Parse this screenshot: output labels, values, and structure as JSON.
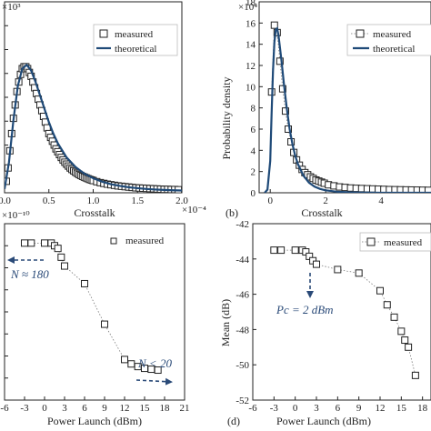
{
  "panels": {
    "a": {
      "exp_label": "×10³",
      "xlabel": "Crosstalk",
      "x_exp": "×10⁻⁴",
      "legend": [
        "measured",
        "theoretical"
      ]
    },
    "b": {
      "panel_letter": "(b)",
      "exp_label": "×10⁴",
      "xlabel": "Crosstalk",
      "ylabel": "Probability density",
      "legend": [
        "measured",
        "theoretical"
      ]
    },
    "c": {
      "exp_label": "×10⁻¹⁰",
      "xlabel": "Power Launch (dBm)",
      "legend": [
        "measured"
      ],
      "ann1": "N ≈ 180",
      "ann2": "N < 20"
    },
    "d": {
      "panel_letter": "(d)",
      "xlabel": "Power Launch (dBm)",
      "ylabel": "Mean (dB)",
      "legend": [
        "measured"
      ],
      "ann1": "Pc = 2 dBm"
    }
  },
  "chart_data": [
    {
      "panel": "a",
      "type": "scatter",
      "xlabel": "Crosstalk",
      "x_ticks": [
        "0.0",
        "0.5",
        "1.0",
        "1.5",
        "2.0"
      ],
      "xlim": [
        0,
        2.0
      ],
      "ylim": [
        0,
        10
      ],
      "y_ticks": [],
      "series": [
        {
          "name": "measured",
          "x": [
            0.02,
            0.04,
            0.06,
            0.08,
            0.1,
            0.12,
            0.14,
            0.16,
            0.18,
            0.2,
            0.22,
            0.24,
            0.26,
            0.28,
            0.3,
            0.32,
            0.34,
            0.36,
            0.38,
            0.4,
            0.42,
            0.44,
            0.46,
            0.48,
            0.5,
            0.52,
            0.54,
            0.56,
            0.58,
            0.6,
            0.62,
            0.64,
            0.66,
            0.68,
            0.7,
            0.72,
            0.74,
            0.76,
            0.78,
            0.8,
            0.82,
            0.84,
            0.86,
            0.88,
            0.9,
            0.92,
            0.94,
            0.96,
            0.98,
            1.0,
            1.04,
            1.08,
            1.12,
            1.16,
            1.2,
            1.24,
            1.28,
            1.32,
            1.36,
            1.4,
            1.44,
            1.48,
            1.52,
            1.56,
            1.6,
            1.64,
            1.68,
            1.72,
            1.76,
            1.8,
            1.84,
            1.88,
            1.92,
            1.96
          ],
          "y": [
            0.6,
            1.3,
            2.2,
            3.1,
            3.9,
            4.6,
            5.3,
            5.8,
            6.2,
            6.5,
            6.6,
            6.6,
            6.5,
            6.3,
            6.1,
            5.8,
            5.5,
            5.2,
            4.9,
            4.6,
            4.3,
            4.0,
            3.7,
            3.4,
            3.1,
            2.9,
            2.7,
            2.5,
            2.3,
            2.15,
            2.0,
            1.85,
            1.72,
            1.6,
            1.5,
            1.4,
            1.3,
            1.22,
            1.15,
            1.08,
            1.02,
            0.96,
            0.91,
            0.86,
            0.82,
            0.78,
            0.74,
            0.7,
            0.67,
            0.64,
            0.58,
            0.53,
            0.49,
            0.45,
            0.42,
            0.39,
            0.36,
            0.34,
            0.32,
            0.3,
            0.28,
            0.26,
            0.25,
            0.24,
            0.23,
            0.22,
            0.21,
            0.2,
            0.19,
            0.18,
            0.18,
            0.17,
            0.17,
            0.16
          ]
        },
        {
          "name": "theoretical",
          "x": [
            0.0,
            0.05,
            0.1,
            0.15,
            0.2,
            0.25,
            0.3,
            0.35,
            0.4,
            0.45,
            0.5,
            0.55,
            0.6,
            0.7,
            0.8,
            0.9,
            1.0,
            1.1,
            1.2,
            1.3,
            1.4,
            1.5,
            1.6,
            1.7,
            1.8,
            1.9,
            2.0
          ],
          "y": [
            0.2,
            1.6,
            3.8,
            5.6,
            6.5,
            6.7,
            6.4,
            5.8,
            5.1,
            4.4,
            3.7,
            3.1,
            2.6,
            1.85,
            1.35,
            1.0,
            0.76,
            0.58,
            0.45,
            0.36,
            0.29,
            0.24,
            0.2,
            0.17,
            0.15,
            0.13,
            0.12
          ]
        }
      ]
    },
    {
      "panel": "b",
      "type": "scatter",
      "xlabel": "Crosstalk",
      "ylabel": "Probability density",
      "y_ticks": [
        "0",
        "2",
        "4",
        "6",
        "8",
        "10",
        "12",
        "14",
        "16",
        "18"
      ],
      "x_ticks": [
        "0",
        "2",
        "4"
      ],
      "xlim": [
        -0.4,
        5.8
      ],
      "ylim": [
        0,
        18
      ],
      "series": [
        {
          "name": "measured",
          "x": [
            0.05,
            0.15,
            0.25,
            0.35,
            0.45,
            0.55,
            0.65,
            0.75,
            0.85,
            0.95,
            1.05,
            1.15,
            1.25,
            1.35,
            1.45,
            1.55,
            1.65,
            1.75,
            1.85,
            1.95,
            2.1,
            2.3,
            2.5,
            2.7,
            2.9,
            3.1,
            3.3,
            3.5,
            3.7,
            3.9,
            4.1,
            4.3,
            4.5,
            4.7,
            4.9,
            5.1,
            5.3,
            5.5,
            5.7
          ],
          "y": [
            9.5,
            15.8,
            15.1,
            12.4,
            9.8,
            7.7,
            6.0,
            4.8,
            3.8,
            3.1,
            2.6,
            2.2,
            1.9,
            1.7,
            1.5,
            1.35,
            1.2,
            1.1,
            1.0,
            0.9,
            0.75,
            0.65,
            0.55,
            0.5,
            0.45,
            0.42,
            0.4,
            0.38,
            0.36,
            0.34,
            0.32,
            0.3,
            0.29,
            0.28,
            0.27,
            0.26,
            0.25,
            0.24,
            0.23
          ]
        },
        {
          "name": "theoretical",
          "x": [
            -0.2,
            -0.1,
            0.0,
            0.05,
            0.1,
            0.15,
            0.2,
            0.25,
            0.3,
            0.4,
            0.5,
            0.6,
            0.7,
            0.8,
            0.9,
            1.0,
            1.2,
            1.4,
            1.6,
            1.8,
            2.0,
            2.4,
            2.8,
            3.2,
            3.6,
            4.0,
            4.5,
            5.0,
            5.5,
            5.8
          ],
          "y": [
            0,
            0.3,
            3.0,
            7.5,
            11.5,
            14.2,
            15.4,
            15.5,
            14.8,
            12.6,
            10.1,
            7.9,
            6.0,
            4.6,
            3.5,
            2.7,
            1.6,
            0.95,
            0.58,
            0.36,
            0.23,
            0.1,
            0.05,
            0.02,
            0.01,
            0,
            0,
            0,
            0,
            0
          ]
        }
      ]
    },
    {
      "panel": "c",
      "type": "line",
      "xlabel": "Power Launch (dBm)",
      "x_ticks": [
        "-6",
        "-3",
        "0",
        "3",
        "6",
        "9",
        "12",
        "15",
        "18",
        "21"
      ],
      "xlim": [
        -6,
        21
      ],
      "ylim": [
        0,
        10
      ],
      "y_ticks": [],
      "series": [
        {
          "name": "measured",
          "x": [
            -3,
            -2,
            0,
            1,
            1.5,
            2,
            2.5,
            3,
            6,
            9,
            12,
            13,
            14,
            15,
            16,
            17
          ],
          "y": [
            8.9,
            8.9,
            8.9,
            8.9,
            8.75,
            8.6,
            8.1,
            7.6,
            6.6,
            4.3,
            2.3,
            2.05,
            1.9,
            1.8,
            1.75,
            1.7
          ]
        }
      ]
    },
    {
      "panel": "d",
      "type": "line",
      "xlabel": "Power Launch (dBm)",
      "ylabel": "Mean (dB)",
      "x_ticks": [
        "-6",
        "-3",
        "0",
        "3",
        "6",
        "9",
        "12",
        "15",
        "18"
      ],
      "y_ticks": [
        "-42",
        "-44",
        "-46",
        "-48",
        "-50",
        "-52"
      ],
      "xlim": [
        -6,
        19.2
      ],
      "ylim": [
        -52,
        -42
      ],
      "series": [
        {
          "name": "measured",
          "x": [
            -3,
            -2,
            0,
            1,
            1.5,
            2,
            2.5,
            3,
            6,
            9,
            12,
            13,
            14,
            15,
            15.5,
            16,
            17
          ],
          "y": [
            -43.5,
            -43.5,
            -43.5,
            -43.5,
            -43.6,
            -43.85,
            -44.1,
            -44.3,
            -44.6,
            -44.8,
            -45.8,
            -46.6,
            -47.3,
            -48.1,
            -48.6,
            -49.0,
            -50.6
          ]
        }
      ]
    }
  ]
}
